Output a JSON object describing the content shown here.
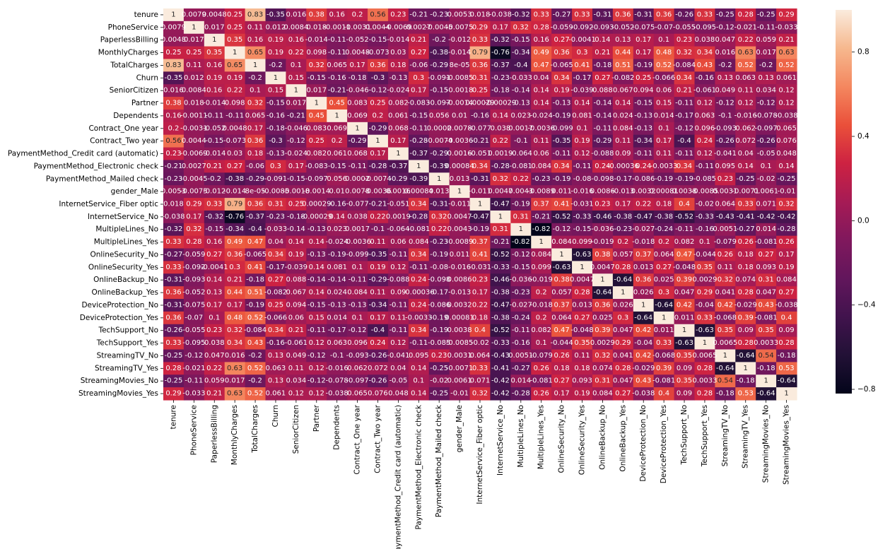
{
  "chart_data": {
    "type": "heatmap",
    "colormap": "rocket",
    "vmin": -0.82,
    "vmax": 1,
    "annotated": true,
    "colorbar_ticks": [
      0.8,
      0.4,
      0.0,
      -0.4,
      -0.8
    ],
    "colorbar_tick_labels": [
      "0.8",
      "0.4",
      "0.0",
      "−0.4",
      "−0.8"
    ],
    "labels": [
      "tenure",
      "PhoneService",
      "PaperlessBilling",
      "MonthlyCharges",
      "TotalCharges",
      "Churn",
      "SeniorCitizen",
      "Partner",
      "Dependents",
      "Contract_One year",
      "Contract_Two year",
      "PaymentMethod_Credit card (automatic)",
      "PaymentMethod_Electronic check",
      "PaymentMethod_Mailed check",
      "gender_Male",
      "InternetService_Fiber optic",
      "InternetService_No",
      "MultipleLines_No",
      "MultipleLines_Yes",
      "OnlineSecurity_No",
      "OnlineSecurity_Yes",
      "OnlineBackup_No",
      "OnlineBackup_Yes",
      "DeviceProtection_No",
      "DeviceProtection_Yes",
      "TechSupport_No",
      "TechSupport_Yes",
      "StreamingTV_No",
      "StreamingTV_Yes",
      "StreamingMovies_No",
      "StreamingMovies_Yes"
    ],
    "cell_labels": [
      [
        "1",
        "0.0079",
        "0.0048",
        "0.25",
        "0.83",
        "-0.35",
        "0.016",
        "0.38",
        "0.16",
        "0.2",
        "0.56",
        "0.23",
        "-0.21",
        "-0.23",
        "0.0053",
        "0.018",
        "-0.038",
        "-0.32",
        "0.33",
        "-0.27",
        "0.33",
        "-0.31",
        "0.36",
        "-0.31",
        "0.36",
        "-0.26",
        "0.33",
        "-0.25",
        "0.28",
        "-0.25",
        "0.29"
      ],
      [
        "0.0079",
        "1",
        "0.017",
        "0.25",
        "0.11",
        "0.012",
        "0.0084",
        "0.018",
        "-0.0011",
        "-0.0031",
        "0.0044",
        "-0.0069",
        "0.0027",
        "-0.0045",
        "-0.0075",
        "0.29",
        "0.17",
        "0.32",
        "0.28",
        "-0.059",
        "-0.092",
        "-0.093",
        "-0.052",
        "-0.075",
        "-0.07",
        "-0.055",
        "-0.095",
        "-0.12",
        "-0.021",
        "-0.11",
        "-0.033"
      ],
      [
        "0.0048",
        "0.017",
        "1",
        "0.35",
        "0.16",
        "0.19",
        "0.16",
        "-0.014",
        "-0.11",
        "-0.052",
        "-0.15",
        "-0.014",
        "0.21",
        "-0.2",
        "-0.012",
        "0.33",
        "-0.32",
        "-0.15",
        "0.16",
        "0.27",
        "-0.0041",
        "0.14",
        "0.13",
        "0.17",
        "0.1",
        "0.23",
        "0.038",
        "0.047",
        "0.22",
        "0.059",
        "0.21"
      ],
      [
        "0.25",
        "0.25",
        "0.35",
        "1",
        "0.65",
        "0.19",
        "0.22",
        "0.098",
        "-0.11",
        "0.0048",
        "-0.073",
        "0.03",
        "0.27",
        "-0.38",
        "-0.014",
        "0.79",
        "-0.76",
        "-0.34",
        "0.49",
        "0.36",
        "0.3",
        "0.21",
        "0.44",
        "0.17",
        "0.48",
        "0.32",
        "0.34",
        "0.016",
        "0.63",
        "0.017",
        "0.63"
      ],
      [
        "0.83",
        "0.11",
        "0.16",
        "0.65",
        "1",
        "-0.2",
        "0.1",
        "0.32",
        "0.065",
        "0.17",
        "0.36",
        "0.18",
        "-0.06",
        "-0.29",
        "8e-05",
        "0.36",
        "-0.37",
        "-0.4",
        "0.47",
        "-0.065",
        "0.41",
        "-0.18",
        "0.51",
        "-0.19",
        "0.52",
        "-0.084",
        "0.43",
        "-0.2",
        "0.52",
        "-0.2",
        "0.52"
      ],
      [
        "-0.35",
        "0.012",
        "0.19",
        "0.19",
        "-0.2",
        "1",
        "0.15",
        "-0.15",
        "-0.16",
        "-0.18",
        "-0.3",
        "-0.13",
        "0.3",
        "-0.091",
        "-0.0085",
        "0.31",
        "-0.23",
        "-0.033",
        "0.04",
        "0.34",
        "-0.17",
        "0.27",
        "-0.082",
        "0.25",
        "-0.066",
        "0.34",
        "-0.16",
        "0.13",
        "0.063",
        "0.13",
        "0.061"
      ],
      [
        "0.016",
        "0.0084",
        "0.16",
        "0.22",
        "0.1",
        "0.15",
        "1",
        "0.017",
        "-0.21",
        "-0.046",
        "-0.12",
        "-0.024",
        "0.17",
        "-0.15",
        "-0.0018",
        "0.25",
        "-0.18",
        "-0.14",
        "0.14",
        "0.19",
        "-0.039",
        "0.088",
        "0.067",
        "0.094",
        "0.06",
        "0.21",
        "-0.061",
        "0.049",
        "0.11",
        "0.034",
        "0.12"
      ],
      [
        "0.38",
        "0.018",
        "-0.014",
        "0.098",
        "0.32",
        "-0.15",
        "0.017",
        "1",
        "0.45",
        "0.083",
        "0.25",
        "0.082",
        "-0.083",
        "-0.097",
        "-0.0014",
        "0.00029",
        "-0.00029",
        "-0.13",
        "0.14",
        "-0.13",
        "0.14",
        "-0.14",
        "0.14",
        "-0.15",
        "0.15",
        "-0.11",
        "0.12",
        "-0.12",
        "0.12",
        "-0.12",
        "0.12"
      ],
      [
        "0.16",
        "-0.0011",
        "-0.11",
        "-0.11",
        "0.065",
        "-0.16",
        "-0.21",
        "0.45",
        "1",
        "0.069",
        "0.2",
        "0.061",
        "-0.15",
        "0.056",
        "0.01",
        "-0.16",
        "0.14",
        "0.023",
        "-0.024",
        "-0.19",
        "0.081",
        "-0.14",
        "0.024",
        "-0.13",
        "0.014",
        "-0.17",
        "0.063",
        "-0.1",
        "-0.016",
        "-0.078",
        "-0.038"
      ],
      [
        "0.2",
        "-0.0031",
        "-0.052",
        "0.0048",
        "0.17",
        "-0.18",
        "-0.046",
        "0.083",
        "0.069",
        "1",
        "-0.29",
        "0.068",
        "-0.11",
        "0.0002",
        "0.0078",
        "-0.077",
        "0.038",
        "0.0017",
        "-0.0036",
        "-0.099",
        "0.1",
        "-0.11",
        "0.084",
        "-0.13",
        "0.1",
        "-0.12",
        "0.096",
        "-0.093",
        "0.062",
        "-0.097",
        "0.065"
      ],
      [
        "0.56",
        "0.0044",
        "-0.15",
        "-0.073",
        "0.36",
        "-0.3",
        "-0.12",
        "0.25",
        "0.2",
        "-0.29",
        "1",
        "0.17",
        "-0.28",
        "-0.0074",
        "-0.0036",
        "-0.21",
        "0.22",
        "-0.1",
        "0.11",
        "-0.35",
        "0.19",
        "-0.29",
        "0.11",
        "-0.34",
        "0.17",
        "-0.4",
        "0.24",
        "-0.26",
        "0.072",
        "-0.26",
        "0.076"
      ],
      [
        "0.23",
        "-0.0069",
        "-0.014",
        "0.03",
        "0.18",
        "-0.13",
        "-0.024",
        "0.082",
        "0.061",
        "0.068",
        "0.17",
        "1",
        "-0.37",
        "-0.29",
        "0.0016",
        "-0.051",
        "0.0019",
        "-0.064",
        "0.06",
        "-0.11",
        "0.12",
        "-0.088",
        "0.09",
        "-0.11",
        "0.11",
        "-0.11",
        "0.12",
        "-0.041",
        "0.04",
        "-0.05",
        "0.048"
      ],
      [
        "-0.21",
        "0.0027",
        "0.21",
        "0.27",
        "-0.06",
        "0.3",
        "0.17",
        "-0.083",
        "-0.15",
        "-0.11",
        "-0.28",
        "-0.37",
        "1",
        "-0.39",
        "0.00084",
        "0.34",
        "-0.28",
        "-0.081",
        "0.084",
        "0.34",
        "-0.11",
        "0.24",
        "-0.00036",
        "0.24",
        "-0.0033",
        "0.34",
        "-0.11",
        "0.095",
        "0.14",
        "0.1",
        "0.14"
      ],
      [
        "-0.23",
        "-0.0045",
        "-0.2",
        "-0.38",
        "-0.29",
        "-0.091",
        "-0.15",
        "-0.097",
        "0.056",
        "0.0002",
        "-0.0074",
        "-0.29",
        "-0.39",
        "1",
        "0.013",
        "-0.31",
        "0.32",
        "0.22",
        "-0.23",
        "-0.19",
        "-0.08",
        "-0.098",
        "-0.17",
        "-0.086",
        "-0.19",
        "-0.19",
        "-0.085",
        "0.23",
        "-0.25",
        "-0.02",
        "-0.25"
      ],
      [
        "0.0053",
        "-0.0075",
        "-0.012",
        "-0.014",
        "8e-05",
        "-0.0085",
        "-0.0018",
        "-0.0014",
        "0.01",
        "0.0078",
        "-0.0036",
        "0.0016",
        "0.00084",
        "0.013",
        "1",
        "-0.011",
        "0.0047",
        "0.0043",
        "-0.0089",
        "0.011",
        "-0.016",
        "0.0086",
        "-0.013",
        "0.0032",
        "0.00081",
        "0.0038",
        "-0.0085",
        "0.0031",
        "-0.0071",
        "0.0061",
        "-0.01"
      ],
      [
        "0.018",
        "0.29",
        "0.33",
        "0.79",
        "0.36",
        "0.31",
        "0.25",
        "0.00029",
        "-0.16",
        "-0.077",
        "-0.21",
        "-0.051",
        "0.34",
        "-0.31",
        "-0.011",
        "1",
        "-0.47",
        "-0.19",
        "0.37",
        "0.41",
        "-0.031",
        "0.23",
        "0.17",
        "0.22",
        "0.18",
        "0.4",
        "-0.02",
        "0.064",
        "0.33",
        "0.071",
        "0.32"
      ],
      [
        "-0.038",
        "0.17",
        "-0.32",
        "-0.76",
        "-0.37",
        "-0.23",
        "-0.18",
        "-0.00029",
        "0.14",
        "0.038",
        "0.22",
        "0.0019",
        "-0.28",
        "0.32",
        "0.0047",
        "-0.47",
        "1",
        "0.31",
        "-0.21",
        "-0.52",
        "-0.33",
        "-0.46",
        "-0.38",
        "-0.47",
        "-0.38",
        "-0.52",
        "-0.33",
        "-0.43",
        "-0.41",
        "-0.42",
        "-0.42"
      ],
      [
        "-0.32",
        "0.32",
        "-0.15",
        "-0.34",
        "-0.4",
        "-0.033",
        "-0.14",
        "-0.13",
        "0.023",
        "0.0017",
        "-0.1",
        "-0.064",
        "-0.081",
        "0.22",
        "0.0043",
        "-0.19",
        "0.31",
        "1",
        "-0.82",
        "-0.12",
        "-0.15",
        "-0.036",
        "-0.23",
        "-0.027",
        "-0.24",
        "-0.11",
        "-0.16",
        "0.0051",
        "-0.27",
        "0.014",
        "-0.28"
      ],
      [
        "0.33",
        "0.28",
        "0.16",
        "0.49",
        "0.47",
        "0.04",
        "0.14",
        "0.14",
        "-0.024",
        "-0.0036",
        "0.11",
        "0.06",
        "0.084",
        "-0.23",
        "-0.0089",
        "0.37",
        "-0.21",
        "-0.82",
        "1",
        "0.084",
        "0.099",
        "-0.019",
        "0.2",
        "-0.018",
        "0.2",
        "0.082",
        "0.1",
        "-0.079",
        "0.26",
        "-0.081",
        "0.26"
      ],
      [
        "-0.27",
        "-0.059",
        "0.27",
        "0.36",
        "-0.065",
        "0.34",
        "0.19",
        "-0.13",
        "-0.19",
        "-0.099",
        "-0.35",
        "-0.11",
        "0.34",
        "-0.19",
        "0.011",
        "0.41",
        "-0.52",
        "-0.12",
        "0.084",
        "1",
        "-0.63",
        "0.38",
        "0.057",
        "0.37",
        "0.064",
        "0.47",
        "-0.044",
        "0.26",
        "0.18",
        "0.27",
        "0.17"
      ],
      [
        "0.33",
        "-0.092",
        "-0.0041",
        "0.3",
        "0.41",
        "-0.17",
        "-0.039",
        "0.14",
        "0.081",
        "0.1",
        "0.19",
        "0.12",
        "-0.11",
        "-0.08",
        "-0.016",
        "-0.031",
        "-0.33",
        "-0.15",
        "0.099",
        "-0.63",
        "1",
        "0.0047",
        "0.28",
        "0.013",
        "0.27",
        "-0.048",
        "0.35",
        "0.11",
        "0.18",
        "0.093",
        "0.19"
      ],
      [
        "-0.31",
        "-0.093",
        "0.14",
        "0.21",
        "-0.18",
        "0.27",
        "0.088",
        "-0.14",
        "-0.14",
        "-0.11",
        "-0.29",
        "-0.088",
        "0.24",
        "-0.098",
        "0.0086",
        "0.23",
        "-0.46",
        "-0.036",
        "-0.019",
        "0.38",
        "0.0047",
        "1",
        "-0.64",
        "0.36",
        "0.025",
        "0.39",
        "0.0029",
        "0.32",
        "0.074",
        "0.31",
        "0.084"
      ],
      [
        "0.36",
        "-0.052",
        "0.13",
        "0.44",
        "0.51",
        "-0.082",
        "0.067",
        "0.14",
        "0.024",
        "0.084",
        "0.11",
        "0.09",
        "-0.00036",
        "-0.17",
        "-0.013",
        "0.17",
        "-0.38",
        "-0.23",
        "0.2",
        "0.057",
        "0.28",
        "-0.64",
        "1",
        "0.026",
        "0.3",
        "0.047",
        "0.29",
        "0.041",
        "0.28",
        "0.047",
        "0.27"
      ],
      [
        "-0.31",
        "-0.075",
        "0.17",
        "0.17",
        "-0.19",
        "0.25",
        "0.094",
        "-0.15",
        "-0.13",
        "-0.13",
        "-0.34",
        "-0.11",
        "0.24",
        "-0.086",
        "0.0032",
        "0.22",
        "-0.47",
        "-0.027",
        "-0.018",
        "0.37",
        "0.013",
        "0.36",
        "0.026",
        "1",
        "-0.64",
        "0.42",
        "-0.04",
        "0.42",
        "-0.029",
        "0.43",
        "-0.038"
      ],
      [
        "0.36",
        "-0.07",
        "0.1",
        "0.48",
        "0.52",
        "-0.066",
        "0.06",
        "0.15",
        "0.014",
        "0.1",
        "0.17",
        "0.11",
        "-0.0033",
        "-0.19",
        "0.00081",
        "0.18",
        "-0.38",
        "-0.24",
        "0.2",
        "0.064",
        "0.27",
        "0.025",
        "0.3",
        "-0.64",
        "1",
        "0.011",
        "0.33",
        "-0.068",
        "0.39",
        "-0.081",
        "0.4"
      ],
      [
        "-0.26",
        "-0.055",
        "0.23",
        "0.32",
        "-0.084",
        "0.34",
        "0.21",
        "-0.11",
        "-0.17",
        "-0.12",
        "-0.4",
        "-0.11",
        "0.34",
        "-0.19",
        "0.0038",
        "0.4",
        "-0.52",
        "-0.11",
        "0.082",
        "0.47",
        "-0.048",
        "0.39",
        "0.047",
        "0.42",
        "0.011",
        "1",
        "-0.63",
        "0.35",
        "0.09",
        "0.35",
        "0.09"
      ],
      [
        "0.33",
        "-0.095",
        "0.038",
        "0.34",
        "0.43",
        "-0.16",
        "-0.061",
        "0.12",
        "0.063",
        "0.096",
        "0.24",
        "0.12",
        "-0.11",
        "-0.085",
        "-0.0085",
        "-0.02",
        "-0.33",
        "-0.16",
        "0.1",
        "-0.044",
        "0.35",
        "0.0029",
        "0.29",
        "-0.04",
        "0.33",
        "-0.63",
        "1",
        "0.0065",
        "0.28",
        "0.0033",
        "0.28"
      ],
      [
        "-0.25",
        "-0.12",
        "0.047",
        "0.016",
        "-0.2",
        "0.13",
        "0.049",
        "-0.12",
        "-0.1",
        "-0.093",
        "-0.26",
        "-0.041",
        "0.095",
        "0.23",
        "0.0031",
        "0.064",
        "-0.43",
        "0.0051",
        "-0.079",
        "0.26",
        "0.11",
        "0.32",
        "0.041",
        "0.42",
        "-0.068",
        "0.35",
        "0.0065",
        "1",
        "-0.64",
        "0.54",
        "-0.18"
      ],
      [
        "0.28",
        "-0.021",
        "0.22",
        "0.63",
        "0.52",
        "0.063",
        "0.11",
        "0.12",
        "-0.016",
        "0.062",
        "0.072",
        "0.04",
        "0.14",
        "-0.25",
        "-0.0071",
        "0.33",
        "-0.41",
        "-0.27",
        "0.26",
        "0.18",
        "0.18",
        "0.074",
        "0.28",
        "-0.029",
        "0.39",
        "0.09",
        "0.28",
        "-0.64",
        "1",
        "-0.18",
        "0.53"
      ],
      [
        "-0.25",
        "-0.11",
        "0.059",
        "0.017",
        "-0.2",
        "0.13",
        "0.034",
        "-0.12",
        "-0.078",
        "-0.097",
        "-0.26",
        "-0.05",
        "0.1",
        "-0.02",
        "0.0061",
        "0.071",
        "-0.42",
        "0.014",
        "-0.081",
        "0.27",
        "0.093",
        "0.31",
        "0.047",
        "0.43",
        "-0.081",
        "0.35",
        "0.0033",
        "0.54",
        "-0.18",
        "1",
        "-0.64"
      ],
      [
        "0.29",
        "-0.033",
        "0.21",
        "0.63",
        "0.52",
        "0.061",
        "0.12",
        "0.12",
        "-0.038",
        "0.065",
        "0.076",
        "0.048",
        "0.14",
        "-0.25",
        "-0.01",
        "0.32",
        "-0.42",
        "-0.28",
        "0.26",
        "0.17",
        "0.19",
        "0.084",
        "0.27",
        "-0.038",
        "0.4",
        "0.09",
        "0.28",
        "-0.18",
        "0.53",
        "-0.64",
        "1"
      ]
    ]
  }
}
